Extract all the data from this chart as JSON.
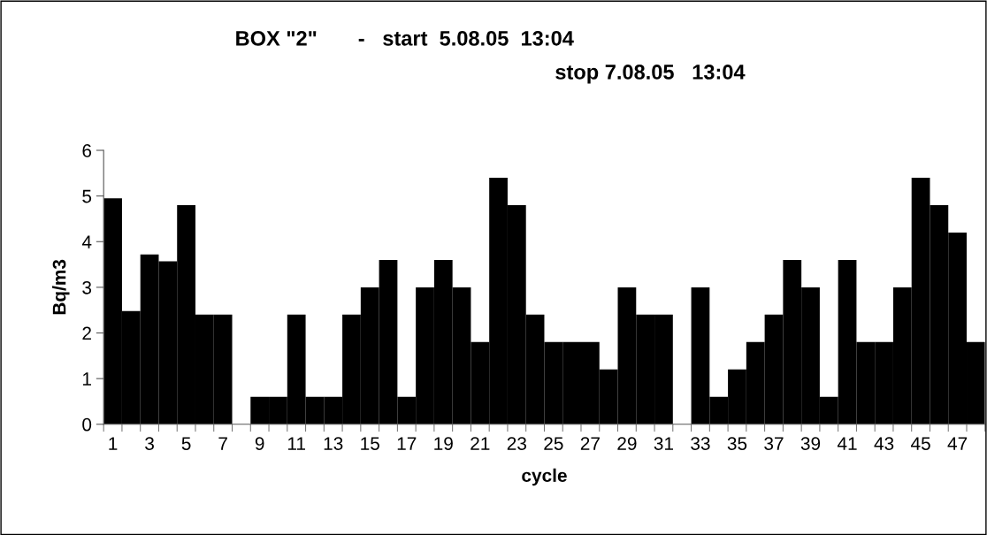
{
  "chart_data": {
    "type": "bar",
    "title": "BOX \"2\"       -   start  5.08.05  13:04",
    "subtitle": "stop 7.08.05   13:04",
    "xlabel": "cycle",
    "ylabel": "Bq/m3",
    "categories": [
      "1",
      null,
      "3",
      null,
      "5",
      null,
      "7",
      null,
      "9",
      null,
      "11",
      null,
      "13",
      null,
      "15",
      null,
      "17",
      null,
      "19",
      null,
      "21",
      null,
      "23",
      null,
      "25",
      null,
      "27",
      null,
      "29",
      null,
      "31",
      null,
      "33",
      null,
      "35",
      null,
      "37",
      null,
      "39",
      null,
      "41",
      null,
      "43",
      null,
      "45",
      null,
      "47",
      null
    ],
    "values": [
      4.95,
      2.48,
      3.72,
      3.57,
      4.8,
      2.4,
      2.4,
      0,
      0.6,
      0.6,
      2.4,
      0.6,
      0.6,
      2.4,
      3.0,
      3.6,
      0.6,
      3.0,
      3.6,
      3.0,
      1.8,
      5.4,
      4.8,
      2.4,
      1.8,
      1.8,
      1.8,
      1.2,
      3.0,
      2.4,
      2.4,
      0,
      3.0,
      0.6,
      1.2,
      1.8,
      2.4,
      3.6,
      3.0,
      0.6,
      3.6,
      1.8,
      1.8,
      3.0,
      5.4,
      4.8,
      4.2,
      1.8
    ],
    "color": "#000000",
    "ylim": [
      0,
      6
    ],
    "yticks": [
      0,
      1,
      2,
      3,
      4,
      5,
      6
    ],
    "grid": false,
    "legend": false
  }
}
